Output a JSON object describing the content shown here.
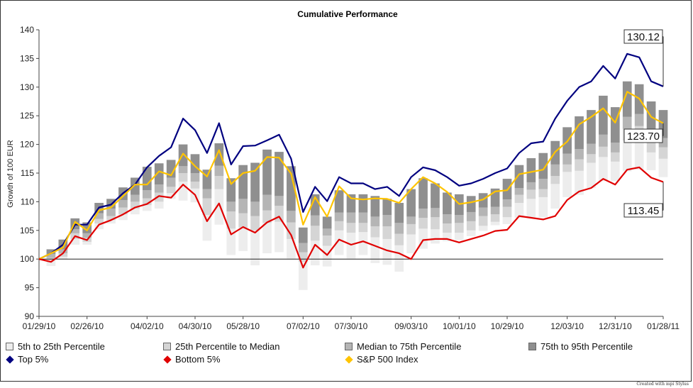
{
  "chart_data": {
    "type": "line",
    "title": "Cumulative Performance",
    "ylabel": "Growth of 100 EUR",
    "xlabel": "",
    "ylim": [
      90,
      140
    ],
    "yticks": [
      90,
      95,
      100,
      105,
      110,
      115,
      120,
      125,
      130,
      135,
      140
    ],
    "xtick_labels": [
      "01/29/10",
      "02/26/10",
      "04/02/10",
      "04/30/10",
      "05/28/10",
      "07/02/10",
      "07/30/10",
      "09/03/10",
      "10/01/10",
      "10/29/10",
      "12/03/10",
      "12/31/10",
      "01/28/11"
    ],
    "xtick_index": [
      0,
      4,
      9,
      13,
      17,
      22,
      26,
      31,
      35,
      39,
      44,
      48,
      52
    ],
    "baseline": 100,
    "series": [
      {
        "name": "Top 5%",
        "color": "#000080",
        "values": [
          100,
          101,
          102.5,
          106,
          106,
          109,
          109.5,
          111.5,
          113,
          116,
          118,
          119.5,
          124.5,
          122.5,
          118.5,
          123.7,
          116.5,
          119.7,
          119.8,
          120.7,
          121.7,
          117.5,
          108.2,
          112.6,
          110.1,
          114.3,
          113.2,
          113.2,
          112.2,
          112.6,
          111,
          114.3,
          116,
          115.5,
          114.3,
          112.8,
          113.2,
          114,
          115,
          115.8,
          118.5,
          120.2,
          120.5,
          124.5,
          127.6,
          130,
          131,
          133.7,
          131.5,
          135.8,
          135.2,
          131,
          130.12
        ]
      },
      {
        "name": "S&P 500 Index",
        "color": "#FFC400",
        "values": [
          100,
          101,
          102,
          106.5,
          105,
          108.5,
          109,
          111,
          113,
          113,
          115.3,
          114.6,
          118.4,
          116.2,
          114.4,
          119,
          113.1,
          115,
          115.4,
          117.8,
          117.7,
          114.9,
          106,
          110.8,
          107.4,
          112.7,
          110.6,
          110.4,
          110.6,
          110.5,
          109.8,
          112.2,
          114.3,
          113.2,
          111.7,
          109.6,
          109.9,
          110.4,
          111.8,
          112,
          114.8,
          115.2,
          115.6,
          118.7,
          120.5,
          123.5,
          124.8,
          126.3,
          123.8,
          129.2,
          128,
          124.8,
          123.7
        ]
      },
      {
        "name": "Bottom 5%",
        "color": "#E00000",
        "values": [
          100,
          99.5,
          101,
          104,
          103.3,
          106,
          106.8,
          107.8,
          109,
          109.6,
          111,
          110.7,
          113,
          111.2,
          106.6,
          109.7,
          104.3,
          105.6,
          104.6,
          106.4,
          107.4,
          104.2,
          98.5,
          102.5,
          100.7,
          103.4,
          102.5,
          103.1,
          102.3,
          101.5,
          101,
          100,
          103.3,
          103.5,
          103.5,
          102.9,
          103.5,
          104.1,
          104.9,
          105.1,
          107.5,
          107.2,
          106.9,
          107.5,
          110.3,
          111.8,
          112.4,
          114,
          113,
          115.6,
          116,
          114.2,
          113.45
        ]
      }
    ],
    "percentile_bands": {
      "names": [
        "5th to 25th Percentile",
        "25th Percentile to Median",
        "Median to 75th Percentile",
        "75th to 95th Percentile"
      ],
      "colors": [
        "#EDEDED",
        "#D5D5D5",
        "#B5B5B5",
        "#8F8F8F"
      ],
      "p5": [
        100,
        98.8,
        100,
        102.5,
        102.5,
        105.2,
        106.2,
        106.8,
        107.8,
        108.4,
        108.8,
        110.5,
        110.2,
        109.9,
        103.2,
        106,
        100.7,
        101.4,
        98.9,
        101,
        101.2,
        100.1,
        94.6,
        98.9,
        98.7,
        100.7,
        100.1,
        100.7,
        99.3,
        99,
        97.8,
        101,
        101.8,
        102.7,
        103.1,
        103.3,
        104,
        104.9,
        105.9,
        106.1,
        107.2,
        107.3,
        107.3,
        108.8,
        110.8,
        111.2,
        112.4,
        113.6,
        113.6,
        115.3,
        115.6,
        115.5,
        114.3
      ],
      "p25": [
        100,
        99.8,
        100.4,
        103.5,
        103,
        106.2,
        106.8,
        107.8,
        108.8,
        109.4,
        110,
        111.5,
        113.5,
        112.3,
        107.7,
        112.2,
        105.3,
        105.5,
        105,
        106.3,
        106.5,
        103.5,
        99.5,
        103.2,
        102.3,
        105,
        104.6,
        104.7,
        103.8,
        103.5,
        102.4,
        104.3,
        105.3,
        105.2,
        104.6,
        104.6,
        105,
        105.8,
        106.5,
        107.3,
        109.8,
        110.5,
        110.8,
        113.1,
        115.2,
        115.4,
        116.8,
        117.8,
        117,
        120.7,
        121.3,
        118.6,
        117.5
      ],
      "p50": [
        100,
        100.2,
        101,
        104.5,
        103.7,
        107,
        107.5,
        109,
        110,
        110.6,
        111.6,
        112.6,
        115,
        113.5,
        110.6,
        114.5,
        108.3,
        108,
        107.5,
        108.5,
        109.3,
        106.4,
        101.2,
        105.8,
        104.1,
        106.6,
        106.3,
        106.3,
        105.7,
        105.7,
        104.4,
        106.1,
        107.2,
        107.3,
        106.2,
        106.3,
        106.6,
        107.5,
        107.8,
        109.1,
        111.2,
        112.1,
        112.2,
        114.5,
        116.5,
        117.4,
        118.3,
        119.6,
        118.6,
        122.7,
        123.2,
        120.8,
        119.5
      ],
      "p75": [
        100,
        100.9,
        101.7,
        105.2,
        104.5,
        108,
        108.8,
        110.3,
        111.2,
        112,
        113,
        114.2,
        116.2,
        115,
        112.2,
        116.3,
        110,
        110.5,
        110,
        111.2,
        111,
        108.4,
        102.8,
        107.6,
        105.3,
        108.1,
        108.1,
        108.1,
        107.4,
        107.7,
        106.3,
        107.4,
        108.8,
        108.9,
        107.8,
        107.7,
        108.2,
        109,
        109.1,
        110.4,
        112.4,
        113.4,
        114,
        116.5,
        118.4,
        119.2,
        120.1,
        121.7,
        120.3,
        124.8,
        125.3,
        122.3,
        121.1
      ],
      "p95": [
        100,
        101.7,
        103.4,
        107.1,
        106.4,
        109.8,
        110.5,
        112.5,
        114.2,
        116.1,
        116.7,
        117.3,
        120,
        118.3,
        115.6,
        120.2,
        114.1,
        116.4,
        116.8,
        119.1,
        118.7,
        116.2,
        105.5,
        111.3,
        107.4,
        112,
        111.3,
        111.3,
        111,
        110.5,
        109.8,
        112.2,
        114.1,
        113.2,
        111.6,
        111.3,
        111,
        111.5,
        112.3,
        114,
        116.4,
        117.6,
        118.5,
        120.6,
        123,
        124.9,
        126,
        128.5,
        126.5,
        131,
        130.5,
        127.5,
        126
      ]
    },
    "end_labels": [
      "130.12",
      "123.70",
      "113.45"
    ],
    "legend_position": "bottom",
    "grid": false
  },
  "legend": {
    "items": [
      {
        "label": "5th to 25th Percentile",
        "kind": "swatch",
        "color": "#EDEDED"
      },
      {
        "label": "25th Percentile to Median",
        "kind": "swatch",
        "color": "#D5D5D5"
      },
      {
        "label": "Median to 75th Percentile",
        "kind": "swatch",
        "color": "#B5B5B5"
      },
      {
        "label": "75th to 95th Percentile",
        "kind": "swatch",
        "color": "#8F8F8F"
      },
      {
        "label": "Top 5%",
        "kind": "diamond",
        "color": "#000080"
      },
      {
        "label": "Bottom 5%",
        "kind": "diamond",
        "color": "#E00000"
      },
      {
        "label": "S&P 500 Index",
        "kind": "diamond",
        "color": "#FFC400"
      }
    ]
  },
  "credit": "Created with mpi Stylus"
}
